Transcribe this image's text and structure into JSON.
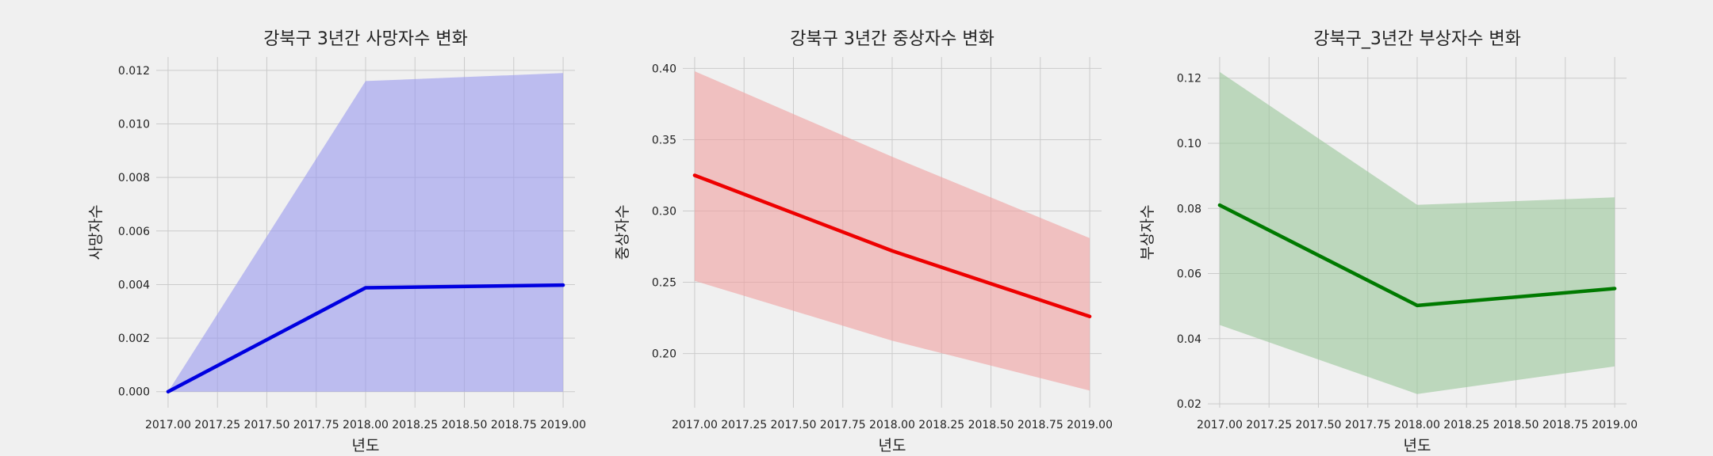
{
  "chart_data": [
    {
      "type": "line",
      "title": "강북구 3년간 사망자수 변화",
      "xlabel": "년도",
      "ylabel": "사망자수",
      "x": [
        2017.0,
        2018.0,
        2019.0
      ],
      "series": [
        {
          "values": [
            0.0,
            0.00388,
            0.00398
          ],
          "lower": [
            0.0,
            0.0,
            0.0
          ],
          "upper": [
            0.0,
            0.0116,
            0.0119
          ]
        }
      ],
      "line_color": "#0000e0",
      "band_color": "#9999ee",
      "xlim": [
        2016.94,
        2019.06
      ],
      "ylim": [
        -0.0006,
        0.0125
      ],
      "xticks": [
        "2017.00",
        "2017.25",
        "2017.50",
        "2017.75",
        "2018.00",
        "2018.25",
        "2018.50",
        "2018.75",
        "2019.00"
      ],
      "yticks": [
        "0.000",
        "0.002",
        "0.004",
        "0.006",
        "0.008",
        "0.010",
        "0.012"
      ],
      "grid": true
    },
    {
      "type": "line",
      "title": "강북구 3년간 중상자수 변화",
      "xlabel": "년도",
      "ylabel": "중상자수",
      "x": [
        2017.0,
        2018.0,
        2019.0
      ],
      "series": [
        {
          "values": [
            0.325,
            0.272,
            0.226
          ],
          "lower": [
            0.251,
            0.209,
            0.174
          ],
          "upper": [
            0.398,
            0.338,
            0.281
          ]
        }
      ],
      "line_color": "#ee0000",
      "band_color": "#f0a0a0",
      "xlim": [
        2016.94,
        2019.06
      ],
      "ylim": [
        0.162,
        0.408
      ],
      "xticks": [
        "2017.00",
        "2017.25",
        "2017.50",
        "2017.75",
        "2018.00",
        "2018.25",
        "2018.50",
        "2018.75",
        "2019.00"
      ],
      "yticks": [
        "0.20",
        "0.25",
        "0.30",
        "0.35",
        "0.40"
      ],
      "grid": true
    },
    {
      "type": "line",
      "title": "강북구_3년간 부상자수 변화",
      "xlabel": "년도",
      "ylabel": "부상자수",
      "x": [
        2017.0,
        2018.0,
        2019.0
      ],
      "series": [
        {
          "values": [
            0.081,
            0.0502,
            0.0554
          ],
          "lower": [
            0.0442,
            0.023,
            0.0315
          ],
          "upper": [
            0.1219,
            0.0811,
            0.0834
          ]
        }
      ],
      "line_color": "#007a00",
      "band_color": "#99c799",
      "xlim": [
        2016.94,
        2019.06
      ],
      "ylim": [
        0.0188,
        0.1265
      ],
      "xticks": [
        "2017.00",
        "2017.25",
        "2017.50",
        "2017.75",
        "2018.00",
        "2018.25",
        "2018.50",
        "2018.75",
        "2019.00"
      ],
      "yticks": [
        "0.02",
        "0.04",
        "0.06",
        "0.08",
        "0.10",
        "0.12"
      ],
      "grid": true
    }
  ]
}
